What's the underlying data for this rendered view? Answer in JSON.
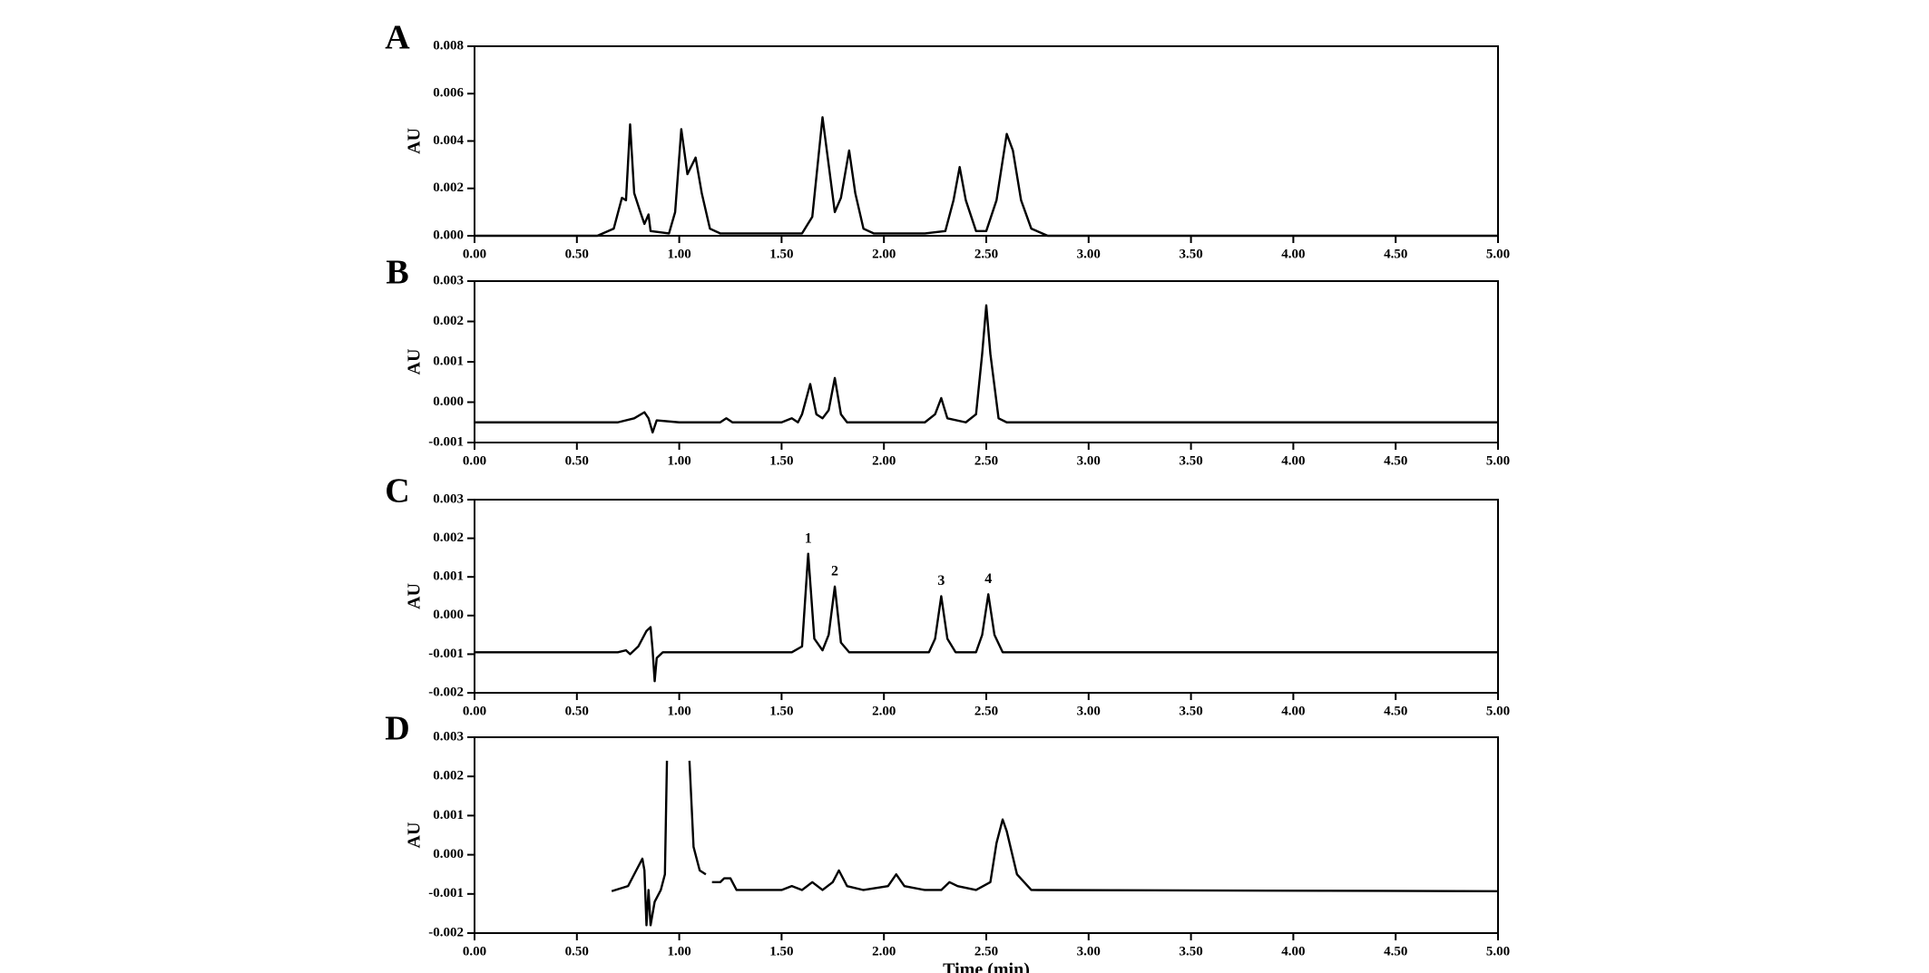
{
  "chart_data": [
    {
      "type": "line",
      "panel_label": "A",
      "ylabel": "AU",
      "color": "#000000",
      "xlim": [
        0,
        5
      ],
      "ylim": [
        0,
        0.008
      ],
      "xticks": [
        {
          "value": 0,
          "label": "0.00"
        },
        {
          "value": 0.5,
          "label": "0.50"
        },
        {
          "value": 1,
          "label": "1.00"
        },
        {
          "value": 1.5,
          "label": "1.50"
        },
        {
          "value": 2,
          "label": "2.00"
        },
        {
          "value": 2.5,
          "label": "2.50"
        },
        {
          "value": 3,
          "label": "3.00"
        },
        {
          "value": 3.5,
          "label": "3.50"
        },
        {
          "value": 4,
          "label": "4.00"
        },
        {
          "value": 4.5,
          "label": "4.50"
        },
        {
          "value": 5,
          "label": "5.00"
        }
      ],
      "yticks": [
        {
          "value": 0,
          "label": "0.000"
        },
        0.002,
        0.004,
        0.006,
        0.008
      ],
      "x": [
        0,
        0.6,
        0.68,
        0.72,
        0.74,
        0.76,
        0.78,
        0.81,
        0.83,
        0.85,
        0.86,
        0.95,
        0.98,
        1.01,
        1.04,
        1.08,
        1.11,
        1.15,
        1.2,
        1.3,
        1.5,
        1.6,
        1.65,
        1.7,
        1.73,
        1.76,
        1.79,
        1.83,
        1.86,
        1.9,
        1.95,
        2.2,
        2.3,
        2.34,
        2.37,
        2.4,
        2.45,
        2.5,
        2.55,
        2.6,
        2.63,
        2.67,
        2.72,
        2.8,
        5
      ],
      "values": [
        0,
        0,
        0.0003,
        0.0016,
        0.0015,
        0.0047,
        0.0018,
        0.001,
        0.0005,
        0.0009,
        0.0002,
        0.0001,
        0.001,
        0.0045,
        0.0026,
        0.0033,
        0.0018,
        0.0003,
        0.0001,
        0.0001,
        0.0001,
        0.0001,
        0.0008,
        0.005,
        0.003,
        0.001,
        0.0016,
        0.0036,
        0.0018,
        0.0003,
        0.0001,
        0.0001,
        0.0002,
        0.0015,
        0.0029,
        0.0015,
        0.0002,
        0.0002,
        0.0015,
        0.0043,
        0.0036,
        0.0015,
        0.0003,
        0,
        0
      ]
    },
    {
      "type": "line",
      "panel_label": "B",
      "ylabel": "AU",
      "color": "#000000",
      "xlim": [
        0,
        5
      ],
      "ylim": [
        -0.001,
        0.003
      ],
      "xticks": [
        {
          "value": 0,
          "label": "0.00"
        },
        {
          "value": 0.5,
          "label": "0.50"
        },
        {
          "value": 1,
          "label": "1.00"
        },
        {
          "value": 1.5,
          "label": "1.50"
        },
        {
          "value": 2,
          "label": "2.00"
        },
        {
          "value": 2.5,
          "label": "2.50"
        },
        {
          "value": 3,
          "label": "3.00"
        },
        {
          "value": 3.5,
          "label": "3.50"
        },
        {
          "value": 4,
          "label": "4.00"
        },
        {
          "value": 4.5,
          "label": "4.50"
        },
        {
          "value": 5,
          "label": "5.00"
        }
      ],
      "yticks": [
        -0.001,
        {
          "value": 0,
          "label": "0.000"
        },
        0.001,
        0.002,
        0.003
      ],
      "x": [
        0,
        0.7,
        0.78,
        0.83,
        0.85,
        0.87,
        0.89,
        1.0,
        1.2,
        1.23,
        1.26,
        1.5,
        1.55,
        1.58,
        1.6,
        1.64,
        1.67,
        1.7,
        1.73,
        1.76,
        1.79,
        1.82,
        2.2,
        2.25,
        2.28,
        2.31,
        2.4,
        2.45,
        2.48,
        2.5,
        2.52,
        2.56,
        2.6,
        5
      ],
      "values": [
        -0.0005,
        -0.0005,
        -0.0004,
        -0.00025,
        -0.0004,
        -0.00075,
        -0.00045,
        -0.0005,
        -0.0005,
        -0.0004,
        -0.0005,
        -0.0005,
        -0.0004,
        -0.0005,
        -0.0003,
        0.00045,
        -0.0003,
        -0.0004,
        -0.0002,
        0.0006,
        -0.0003,
        -0.0005,
        -0.0005,
        -0.0003,
        0.0001,
        -0.0004,
        -0.0005,
        -0.0003,
        0.0012,
        0.0024,
        0.0012,
        -0.0004,
        -0.0005,
        -0.0005
      ]
    },
    {
      "type": "line",
      "panel_label": "C",
      "ylabel": "AU",
      "color": "#000000",
      "xlim": [
        0,
        5
      ],
      "ylim": [
        -0.002,
        0.003
      ],
      "xticks": [
        {
          "value": 0,
          "label": "0.00"
        },
        {
          "value": 0.5,
          "label": "0.50"
        },
        {
          "value": 1,
          "label": "1.00"
        },
        {
          "value": 1.5,
          "label": "1.50"
        },
        {
          "value": 2,
          "label": "2.00"
        },
        {
          "value": 2.5,
          "label": "2.50"
        },
        {
          "value": 3,
          "label": "3.00"
        },
        {
          "value": 3.5,
          "label": "3.50"
        },
        {
          "value": 4,
          "label": "4.00"
        },
        {
          "value": 4.5,
          "label": "4.50"
        },
        {
          "value": 5,
          "label": "5.00"
        }
      ],
      "yticks": [
        -0.002,
        -0.001,
        {
          "value": 0,
          "label": "0.000"
        },
        0.001,
        0.002,
        0.003
      ],
      "x": [
        0,
        0.7,
        0.74,
        0.76,
        0.8,
        0.84,
        0.86,
        0.87,
        0.88,
        0.89,
        0.92,
        1.55,
        1.6,
        1.63,
        1.66,
        1.7,
        1.73,
        1.76,
        1.79,
        1.83,
        2.22,
        2.25,
        2.28,
        2.31,
        2.35,
        2.45,
        2.48,
        2.51,
        2.54,
        2.58,
        5
      ],
      "values": [
        -0.00095,
        -0.00095,
        -0.0009,
        -0.001,
        -0.0008,
        -0.0004,
        -0.0003,
        -0.0009,
        -0.0017,
        -0.0011,
        -0.00095,
        -0.00095,
        -0.0008,
        0.0016,
        -0.0006,
        -0.0009,
        -0.0005,
        0.00075,
        -0.0007,
        -0.00095,
        -0.00095,
        -0.0006,
        0.0005,
        -0.0006,
        -0.00095,
        -0.00095,
        -0.0005,
        0.00055,
        -0.0005,
        -0.00095,
        -0.00095
      ],
      "annotations": [
        {
          "text": "1",
          "x": 1.63,
          "y": 0.0016
        },
        {
          "text": "2",
          "x": 1.76,
          "y": 0.00075
        },
        {
          "text": "3",
          "x": 2.28,
          "y": 0.0005
        },
        {
          "text": "4",
          "x": 2.51,
          "y": 0.00055
        }
      ]
    },
    {
      "type": "line",
      "panel_label": "D",
      "ylabel": "AU",
      "xlabel": "Time (min)",
      "color": "#000000",
      "xlim": [
        0,
        5
      ],
      "ylim": [
        -0.002,
        0.003
      ],
      "xticks": [
        {
          "value": 0,
          "label": "0.00"
        },
        {
          "value": 0.5,
          "label": "0.50"
        },
        {
          "value": 1,
          "label": "1.00"
        },
        {
          "value": 1.5,
          "label": "1.50"
        },
        {
          "value": 2,
          "label": "2.00"
        },
        {
          "value": 2.5,
          "label": "2.50"
        },
        {
          "value": 3,
          "label": "3.00"
        },
        {
          "value": 3.5,
          "label": "3.50"
        },
        {
          "value": 4,
          "label": "4.00"
        },
        {
          "value": 4.5,
          "label": "4.50"
        },
        {
          "value": 5,
          "label": "5.00"
        }
      ],
      "yticks": [
        -0.002,
        -0.001,
        {
          "value": 0,
          "label": "0.000"
        },
        0.001,
        0.002,
        0.003
      ],
      "x": [
        0.67,
        0.75,
        0.79,
        0.82,
        0.83,
        0.84,
        0.85,
        0.86,
        0.88,
        0.91,
        0.93,
        0.94,
        0.99,
        1.05,
        1.07,
        1.1,
        1.13,
        1.14,
        1.16,
        1.2,
        1.22,
        1.25,
        1.28,
        1.5,
        1.55,
        1.6,
        1.65,
        1.7,
        1.75,
        1.78,
        1.82,
        1.9,
        2.02,
        2.06,
        2.1,
        2.2,
        2.28,
        2.32,
        2.36,
        2.45,
        2.52,
        2.55,
        2.58,
        2.6,
        2.65,
        2.72,
        5
      ],
      "values": [
        -0.00093,
        -0.0008,
        -0.0004,
        -0.0001,
        -0.0004,
        -0.0018,
        -0.0009,
        -0.0018,
        -0.0012,
        -0.0009,
        -0.0005,
        0.0024,
        null,
        0.0024,
        0.0002,
        -0.0004,
        -0.0005,
        null,
        -0.0007,
        -0.0007,
        -0.0006,
        -0.0006,
        -0.0009,
        -0.0009,
        -0.0008,
        -0.0009,
        -0.0007,
        -0.0009,
        -0.0007,
        -0.0004,
        -0.0008,
        -0.0009,
        -0.0008,
        -0.0005,
        -0.0008,
        -0.0009,
        -0.0009,
        -0.0007,
        -0.0008,
        -0.0009,
        -0.0007,
        0.0003,
        0.0009,
        0.0006,
        -0.0005,
        -0.0009,
        -0.00093
      ]
    }
  ]
}
